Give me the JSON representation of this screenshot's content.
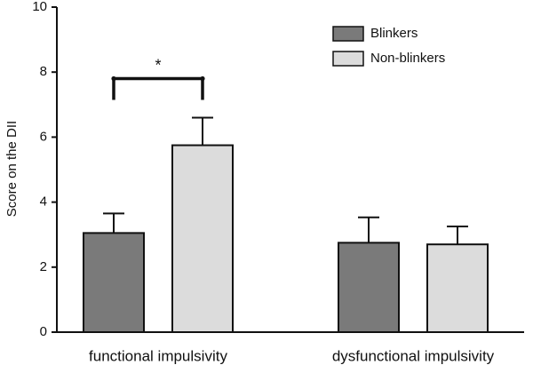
{
  "chart_data": {
    "type": "bar",
    "ylabel": "Score on the DII",
    "xlabel": "",
    "ylim": [
      0,
      10
    ],
    "yticks": [
      0,
      2,
      4,
      6,
      8,
      10
    ],
    "categories": [
      "functional impulsivity",
      "dysfunctional impulsivity"
    ],
    "series": [
      {
        "name": "Blinkers",
        "color": "#7a7a7a",
        "values": [
          3.05,
          2.75
        ],
        "errors": [
          0.6,
          0.78
        ]
      },
      {
        "name": "Non-blinkers",
        "color": "#dcdcdc",
        "values": [
          5.75,
          2.7
        ],
        "errors": [
          0.85,
          0.55
        ]
      }
    ],
    "significance": [
      {
        "category_index": 0,
        "label": "*",
        "level": 7.8
      }
    ],
    "legend_position": "top-right",
    "grid": false
  }
}
